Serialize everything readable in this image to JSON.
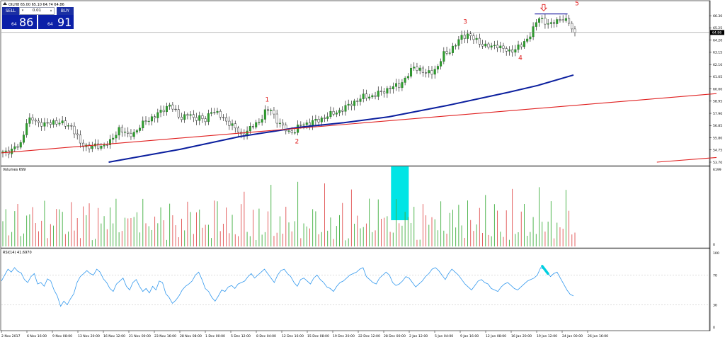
{
  "window": {
    "symbol_line": "OILH8  65.00 65.10 64.74 64.86"
  },
  "trade_panel": {
    "sell_label": "SELL",
    "buy_label": "BUY",
    "lot_value": "0.01",
    "sell_price_small": "64",
    "sell_price_big": "86",
    "buy_price_small": "64",
    "buy_price_big": "91",
    "accent": "#0b1fa8"
  },
  "chart_data": [
    {
      "type": "candlestick",
      "panel": "price",
      "symbol": "OILH8",
      "ylim": [
        53.7,
        66.8
      ],
      "y_ticks": [
        "66.30",
        "65.25",
        "64.20",
        "63.15",
        "62.10",
        "61.05",
        "60.00",
        "58.95",
        "57.90",
        "56.85",
        "55.80",
        "54.75",
        "53.70"
      ],
      "current_price_label": "64.86",
      "current_price": 64.86,
      "x_labels": [
        "2 Nov 2017",
        "6 Nov 16:00",
        "9 Nov 08:00",
        "13 Nov 20:00",
        "16 Nov 12:00",
        "21 Nov 00:00",
        "23 Nov 16:00",
        "28 Nov 08:00",
        "1 Dec 00:00",
        "5 Dec 12:00",
        "8 Dec 04:00",
        "12 Dec 16:00",
        "15 Dec 08:00",
        "19 Dec 20:00",
        "22 Dec 12:00",
        "28 Dec 00:00",
        "2 Jan 12:00",
        "5 Jan 04:00",
        "9 Jan 16:00",
        "12 Jan 08:00",
        "16 Jan 20:00",
        "19 Jan 12:00",
        "24 Jan 00:00",
        "26 Jan 16:00"
      ],
      "close_path": [
        [
          0,
          54.6
        ],
        [
          3,
          54.7
        ],
        [
          6,
          55.3
        ],
        [
          8,
          57.1
        ],
        [
          10,
          57.4
        ],
        [
          12,
          57.1
        ],
        [
          14,
          56.9
        ],
        [
          17,
          57.2
        ],
        [
          20,
          57.0
        ],
        [
          23,
          56.8
        ],
        [
          26,
          55.3
        ],
        [
          29,
          55.0
        ],
        [
          33,
          55.1
        ],
        [
          36,
          55.4
        ],
        [
          39,
          56.6
        ],
        [
          42,
          56.0
        ],
        [
          45,
          56.4
        ],
        [
          48,
          57.3
        ],
        [
          51,
          57.6
        ],
        [
          54,
          58.3
        ],
        [
          56,
          58.6
        ],
        [
          58,
          58.0
        ],
        [
          60,
          57.5
        ],
        [
          62,
          57.8
        ],
        [
          64,
          57.5
        ],
        [
          66,
          57.6
        ],
        [
          68,
          57.2
        ],
        [
          70,
          58.2
        ],
        [
          72,
          57.9
        ],
        [
          74,
          57.4
        ],
        [
          76,
          57.1
        ],
        [
          78,
          56.6
        ],
        [
          80,
          56.0
        ],
        [
          82,
          56.4
        ],
        [
          84,
          56.8
        ],
        [
          86,
          57.2
        ],
        [
          88,
          58.0
        ],
        [
          90,
          58.2
        ],
        [
          92,
          57.3
        ],
        [
          94,
          56.7
        ],
        [
          96,
          56.3
        ],
        [
          98,
          56.4
        ],
        [
          100,
          56.9
        ],
        [
          103,
          57.1
        ],
        [
          106,
          57.3
        ],
        [
          109,
          57.7
        ],
        [
          112,
          58.0
        ],
        [
          115,
          58.4
        ],
        [
          118,
          58.9
        ],
        [
          121,
          59.3
        ],
        [
          124,
          59.4
        ],
        [
          127,
          59.7
        ],
        [
          130,
          60.1
        ],
        [
          133,
          60.3
        ],
        [
          136,
          61.2
        ],
        [
          138,
          61.9
        ],
        [
          140,
          61.7
        ],
        [
          142,
          61.3
        ],
        [
          144,
          61.5
        ],
        [
          146,
          61.9
        ],
        [
          148,
          63.0
        ],
        [
          150,
          63.3
        ],
        [
          152,
          63.8
        ],
        [
          154,
          64.5
        ],
        [
          156,
          64.7
        ],
        [
          158,
          64.3
        ],
        [
          160,
          64.0
        ],
        [
          162,
          63.7
        ],
        [
          164,
          63.6
        ],
        [
          166,
          63.8
        ],
        [
          168,
          63.4
        ],
        [
          170,
          63.2
        ],
        [
          172,
          63.5
        ],
        [
          174,
          63.7
        ],
        [
          176,
          64.3
        ],
        [
          178,
          65.2
        ],
        [
          180,
          66.1
        ],
        [
          182,
          65.8
        ],
        [
          184,
          65.5
        ],
        [
          186,
          65.9
        ],
        [
          188,
          66.1
        ],
        [
          190,
          65.6
        ],
        [
          192,
          64.86
        ]
      ],
      "overlays": [
        {
          "name": "MA blue",
          "color": "#0b1f9e",
          "points": [
            [
              36,
              53.7
            ],
            [
              60,
              54.8
            ],
            [
              80,
              55.9
            ],
            [
              100,
              56.7
            ],
            [
              115,
              57.1
            ],
            [
              130,
              57.6
            ],
            [
              150,
              58.6
            ],
            [
              170,
              59.7
            ],
            [
              180,
              60.3
            ],
            [
              192,
              61.2
            ]
          ]
        },
        {
          "name": "trendline red",
          "color": "#e02020",
          "points": [
            [
              0,
              54.5
            ],
            [
              240,
              59.6
            ]
          ]
        },
        {
          "name": "trendline red lower",
          "color": "#e02020",
          "points": [
            [
              220,
              53.7
            ],
            [
              240,
              54.1
            ]
          ]
        },
        {
          "name": "top line",
          "color": "#1a1aa0",
          "points": [
            [
              179,
              66.45
            ],
            [
              190,
              66.45
            ]
          ]
        }
      ],
      "annotations": [
        {
          "text": "1",
          "x": 88.5,
          "y": 58.9
        },
        {
          "text": "2",
          "x": 98.5,
          "y": 55.3
        },
        {
          "text": "3",
          "x": 155,
          "y": 65.6
        },
        {
          "text": "4",
          "x": 173.5,
          "y": 62.5
        },
        {
          "text": "5",
          "x": 192.5,
          "y": 67.2
        }
      ],
      "grid": false
    },
    {
      "type": "bar",
      "panel": "volume",
      "title": "Volumes 699",
      "ylim": [
        0,
        6199
      ],
      "y_ticks": [
        "6199",
        "0"
      ],
      "highlight_box": {
        "x_from": 131,
        "x_to": 136,
        "color": "#00e5e5"
      }
    },
    {
      "type": "line",
      "panel": "rsi",
      "title": "RSI(14) 41.6970",
      "ylim": [
        0,
        100
      ],
      "y_ticks": [
        "100",
        "70",
        "30",
        "0"
      ],
      "levels": [
        70,
        30
      ],
      "color": "#3399ee",
      "values": [
        62,
        70,
        78,
        74,
        80,
        75,
        73,
        64,
        60,
        68,
        72,
        58,
        60,
        55,
        65,
        62,
        50,
        42,
        28,
        35,
        30,
        38,
        45,
        60,
        68,
        72,
        76,
        72,
        70,
        78,
        74,
        65,
        60,
        52,
        48,
        58,
        62,
        66,
        55,
        50,
        60,
        64,
        55,
        48,
        52,
        46,
        55,
        50,
        62,
        60,
        45,
        40,
        32,
        36,
        42,
        50,
        55,
        58,
        62,
        70,
        74,
        64,
        52,
        48,
        40,
        35,
        42,
        50,
        48,
        54,
        56,
        52,
        58,
        60,
        62,
        68,
        72,
        66,
        70,
        74,
        78,
        72,
        66,
        60,
        70,
        76,
        78,
        72,
        68,
        60,
        55,
        64,
        66,
        62,
        58,
        66,
        70,
        64,
        60,
        54,
        52,
        48,
        55,
        60,
        62,
        66,
        70,
        72,
        74,
        78,
        80,
        68,
        64,
        60,
        58,
        66,
        70,
        74,
        70,
        60,
        56,
        58,
        62,
        68,
        66,
        60,
        54,
        58,
        62,
        68,
        72,
        78,
        80,
        76,
        70,
        64,
        72,
        78,
        74,
        70,
        64,
        58,
        54,
        50,
        56,
        62,
        64,
        60,
        58,
        52,
        50,
        48,
        54,
        58,
        60,
        56,
        52,
        50,
        54,
        58,
        62,
        64,
        66,
        70,
        80,
        78,
        74,
        68,
        72,
        74,
        66,
        58,
        50,
        44,
        42
      ],
      "highlight_mark": {
        "x": 182,
        "y": 78,
        "color": "#00d0e0"
      }
    }
  ]
}
